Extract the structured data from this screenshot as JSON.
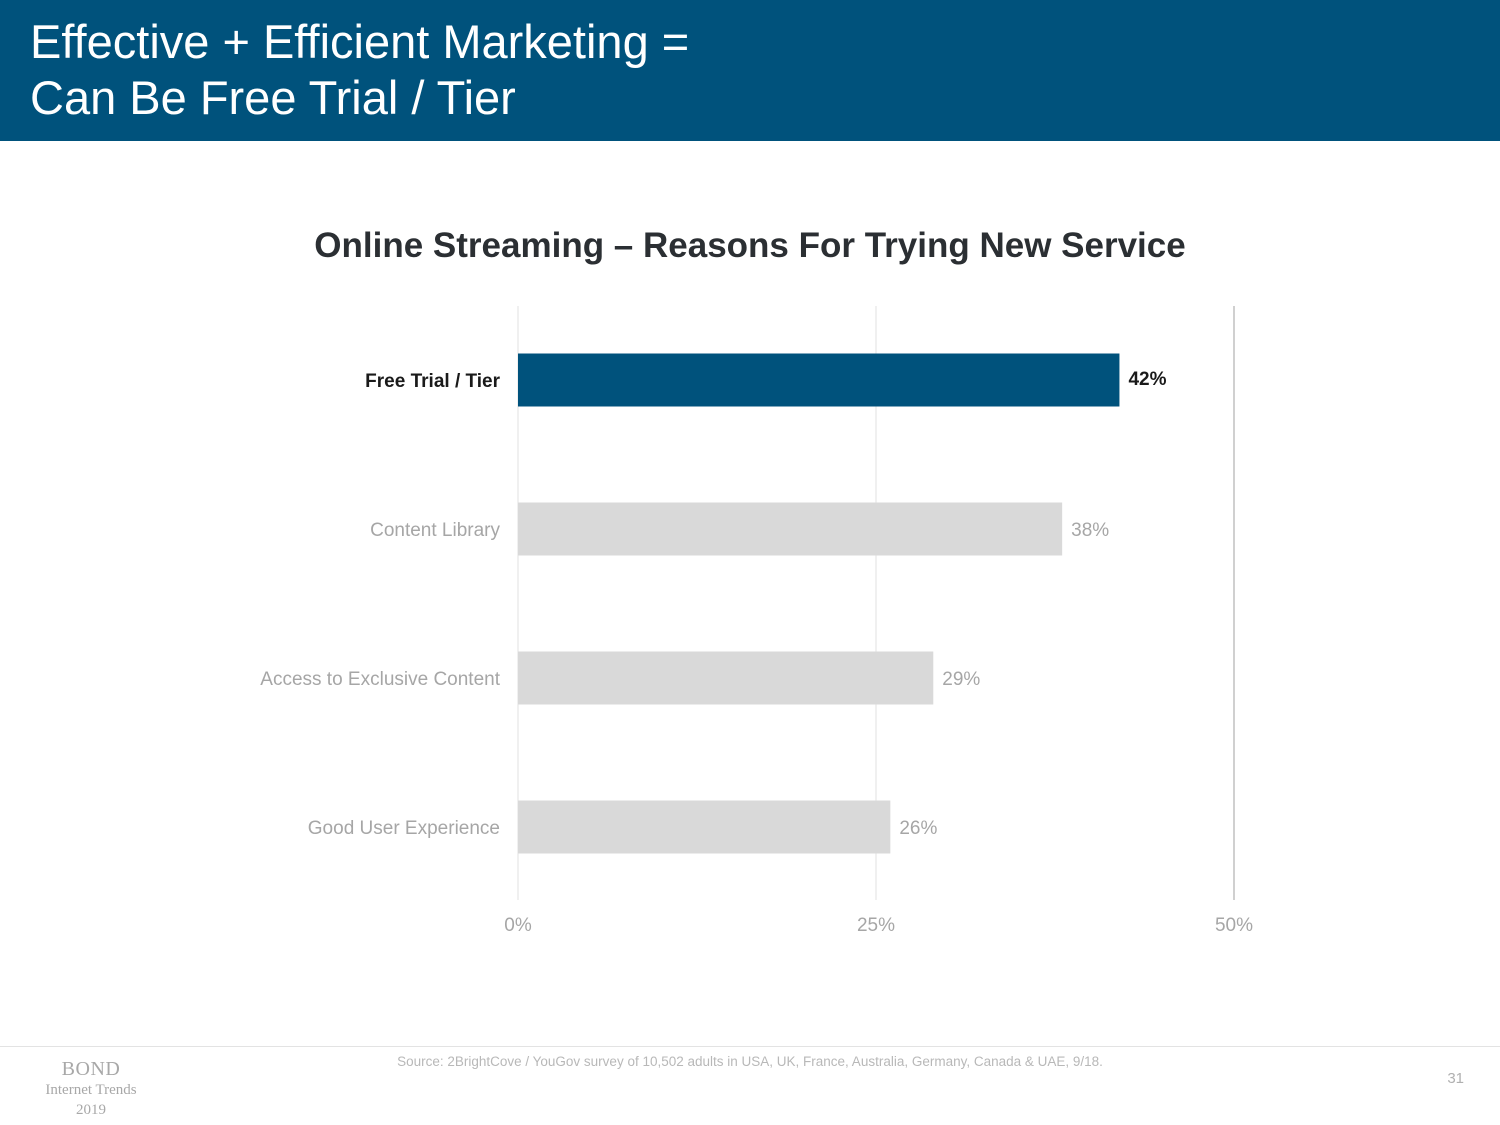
{
  "slide": {
    "title_line1": "Effective + Efficient Marketing =",
    "title_line2": "Can Be Free Trial / Tier",
    "source": "Source: 2BrightCove / YouGov survey of 10,502 adults in USA, UK, France, Australia, Germany, Canada & UAE, 9/18.",
    "page_number": "31",
    "logo": {
      "brand": "BOND",
      "line1": "Internet Trends",
      "line2": "2019"
    }
  },
  "colors": {
    "header_bg": "#00527c",
    "highlight_bar": "#00527c",
    "default_bar": "#d9d9d9",
    "highlight_text": "#1a1a1a",
    "muted_text": "#a6a6a6",
    "grid": "#e2e2e2"
  },
  "chart_data": {
    "type": "bar",
    "orientation": "horizontal",
    "title": "Online Streaming – Reasons For Trying New Service",
    "categories": [
      "Free Trial / Tier",
      "Content Library",
      "Access to Exclusive Content",
      "Good User Experience"
    ],
    "values": [
      42,
      38,
      29,
      26
    ],
    "value_labels": [
      "42%",
      "38%",
      "29%",
      "26%"
    ],
    "highlight_index": 0,
    "xlim": [
      0,
      50
    ],
    "x_ticks": [
      0,
      25,
      50
    ],
    "x_tick_labels": [
      "0%",
      "25%",
      "50%"
    ],
    "unit": "%",
    "grid": true,
    "legend": "none"
  }
}
